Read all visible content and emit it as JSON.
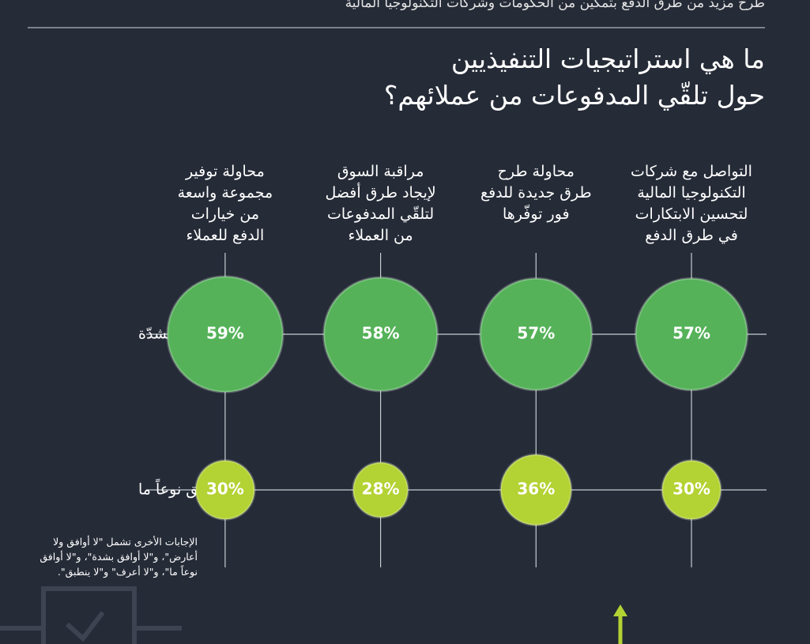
{
  "header": {
    "text": "طرح مزيد من طرق الدفع بتمكين من الحكومات وشركات التكنولوجيا المالية"
  },
  "chart_data": {
    "type": "bubble",
    "title": "ما هي استراتيجيات التنفيذيين\nحول تلقّي المدفوعات من عملائهم؟",
    "categories": [
      "التواصل مع شركات\nالتكنولوجيا المالية\nلتحسين الابتكارات\nفي طرق الدفع",
      "محاولة طرح\nطرق جديدة للدفع\nفور توفّرها",
      "مراقبة السوق\nلإيجاد طرق أفضل\nلتلقّي المدفوعات\nمن العملاء",
      "محاولة توفير\nمجموعة واسعة\nمن خيارات\nالدفع للعملاء"
    ],
    "series": [
      {
        "name": "أوافق بشدّة",
        "color": "#55b259",
        "values": [
          57,
          57,
          58,
          59
        ],
        "value_labels": [
          "57%",
          "57%",
          "58%",
          "59%"
        ]
      },
      {
        "name": "أوافق نوعاً ما",
        "color": "#b3d233",
        "values": [
          30,
          36,
          28,
          30
        ],
        "value_labels": [
          "30%",
          "36%",
          "28%",
          "30%"
        ]
      }
    ],
    "note": "الإجابات الأخرى تشمل \"لا أوافق ولا أعارض\"، و\"لا أوافق بشدة\"، و\"لا أوافق نوعاً ما\"، و\"لا أعرف\" و\"لا ينطبق\"."
  }
}
